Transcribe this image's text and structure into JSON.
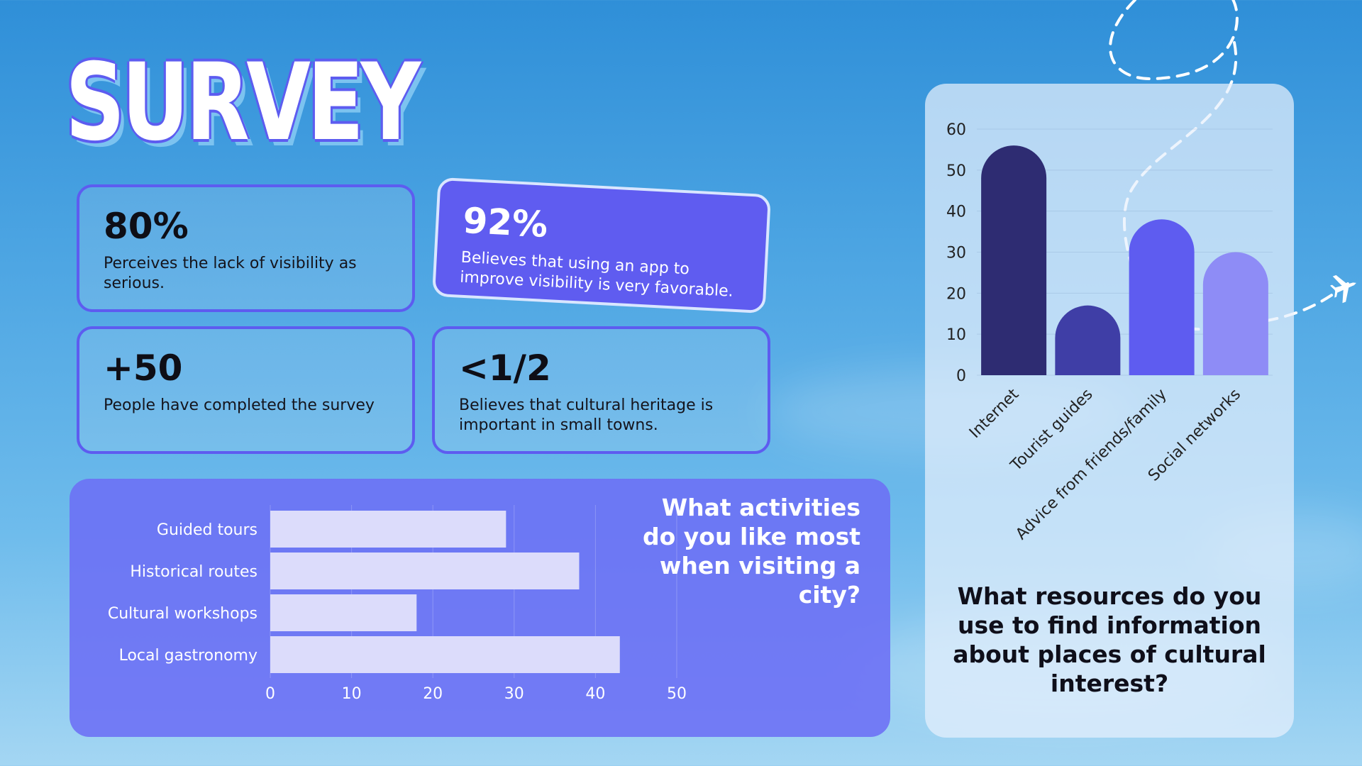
{
  "title": "SURVEY",
  "stats": [
    {
      "value": "80%",
      "text": "Perceives the lack of visibility as serious."
    },
    {
      "value": "92%",
      "text": "Believes that using an app to improve visibility is very favorable."
    },
    {
      "value": "+50",
      "text": "People have completed the survey"
    },
    {
      "value": "<1/2",
      "text": "Believes that cultural heritage is important in small towns."
    }
  ],
  "activities_question": {
    "prefix": "What ",
    "bold": "activities",
    "suffix": " do you like most when visiting a city?"
  },
  "resources_question": {
    "prefix": "What ",
    "bold": "resources",
    "suffix": " do you use to find information about places of cultural interest?"
  },
  "colors": {
    "accent": "#5d5cf0",
    "hbar": "#dcdcfb",
    "vbars": [
      "#2e2c72",
      "#3f3ea6",
      "#5e5cf0",
      "#8e8cf6"
    ]
  },
  "chart_data": [
    {
      "type": "bar",
      "orientation": "horizontal",
      "title": "What activities do you like most when visiting a city?",
      "categories": [
        "Guided tours",
        "Historical routes",
        "Cultural workshops",
        "Local gastronomy"
      ],
      "values": [
        29,
        38,
        18,
        43
      ],
      "xlim": [
        0,
        50
      ],
      "xticks": [
        0,
        10,
        20,
        30,
        40,
        50
      ],
      "grid": true
    },
    {
      "type": "bar",
      "orientation": "vertical",
      "title": "What resources do you use to find information about places of cultural interest?",
      "categories": [
        "Internet",
        "Tourist guides",
        "Advice from friends/family",
        "Social networks"
      ],
      "values": [
        56,
        17,
        38,
        30
      ],
      "ylim": [
        0,
        60
      ],
      "yticks": [
        0,
        10,
        20,
        30,
        40,
        50,
        60
      ],
      "grid": true
    }
  ]
}
